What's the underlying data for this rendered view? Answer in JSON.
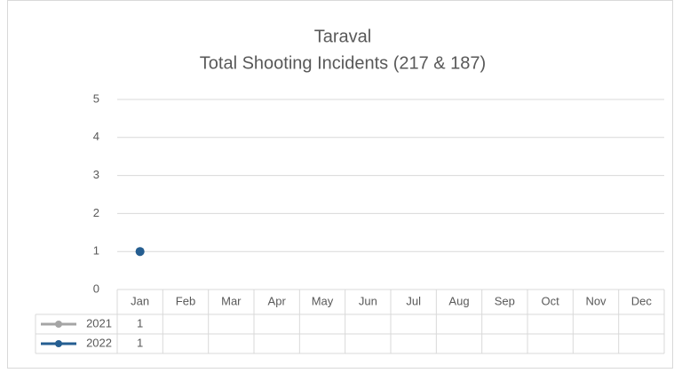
{
  "chart_data": {
    "type": "line",
    "title": "Taraval",
    "subtitle": "Total Shooting Incidents (217 & 187)",
    "categories": [
      "Jan",
      "Feb",
      "Mar",
      "Apr",
      "May",
      "Jun",
      "Jul",
      "Aug",
      "Sep",
      "Oct",
      "Nov",
      "Dec"
    ],
    "series": [
      {
        "name": "2021",
        "color": "#a5a5a5",
        "values": [
          1,
          null,
          null,
          null,
          null,
          null,
          null,
          null,
          null,
          null,
          null,
          null
        ]
      },
      {
        "name": "2022",
        "color": "#255e91",
        "values": [
          1,
          null,
          null,
          null,
          null,
          null,
          null,
          null,
          null,
          null,
          null,
          null
        ]
      }
    ],
    "ylim": [
      0,
      5
    ],
    "yticks": [
      0,
      1,
      2,
      3,
      4,
      5
    ],
    "grid": true,
    "data_table": true
  }
}
